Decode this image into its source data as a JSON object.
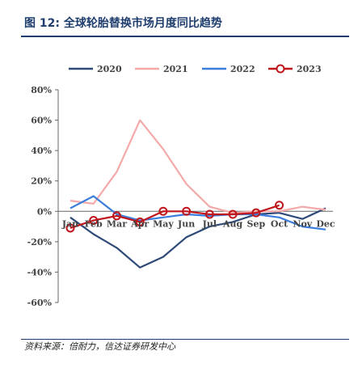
{
  "figure": {
    "title": "图 12:  全球轮胎替换市场月度同比趋势",
    "source": "资料来源：倍耐力，信达证券研发中心"
  },
  "chart_data": {
    "type": "line",
    "title": "",
    "xlabel": "",
    "ylabel": "",
    "categories": [
      "Jan",
      "Feb",
      "Mar",
      "Apr",
      "May",
      "Jun",
      "Jul",
      "Aug",
      "Sep",
      "Oct",
      "Nov",
      "Dec"
    ],
    "y_ticks": [
      "80%",
      "60%",
      "40%",
      "20%",
      "0%",
      "-20%",
      "-40%",
      "-60%"
    ],
    "ylim": [
      -60,
      80
    ],
    "grid": false,
    "legend_position": "top",
    "series": [
      {
        "name": "2020",
        "color": "#2e4a78",
        "marker": "none",
        "values": [
          -4,
          -15,
          -24,
          -37,
          -30,
          -17,
          -10,
          -7,
          -2,
          -1,
          -5,
          2
        ]
      },
      {
        "name": "2021",
        "color": "#f4a9a8",
        "marker": "none",
        "values": [
          7,
          5,
          26,
          60,
          41,
          18,
          3,
          -1,
          0,
          0,
          3,
          1
        ]
      },
      {
        "name": "2022",
        "color": "#3b7ddd",
        "marker": "none",
        "values": [
          2,
          10,
          -2,
          -6,
          -4,
          -2,
          -3,
          -2,
          -2,
          -4,
          -10,
          -12
        ]
      },
      {
        "name": "2023",
        "color": "#c0161b",
        "marker": "circle",
        "values": [
          -11,
          -6,
          -3,
          -7,
          0,
          0,
          -2,
          -2,
          -1,
          4,
          null,
          null
        ]
      }
    ]
  }
}
